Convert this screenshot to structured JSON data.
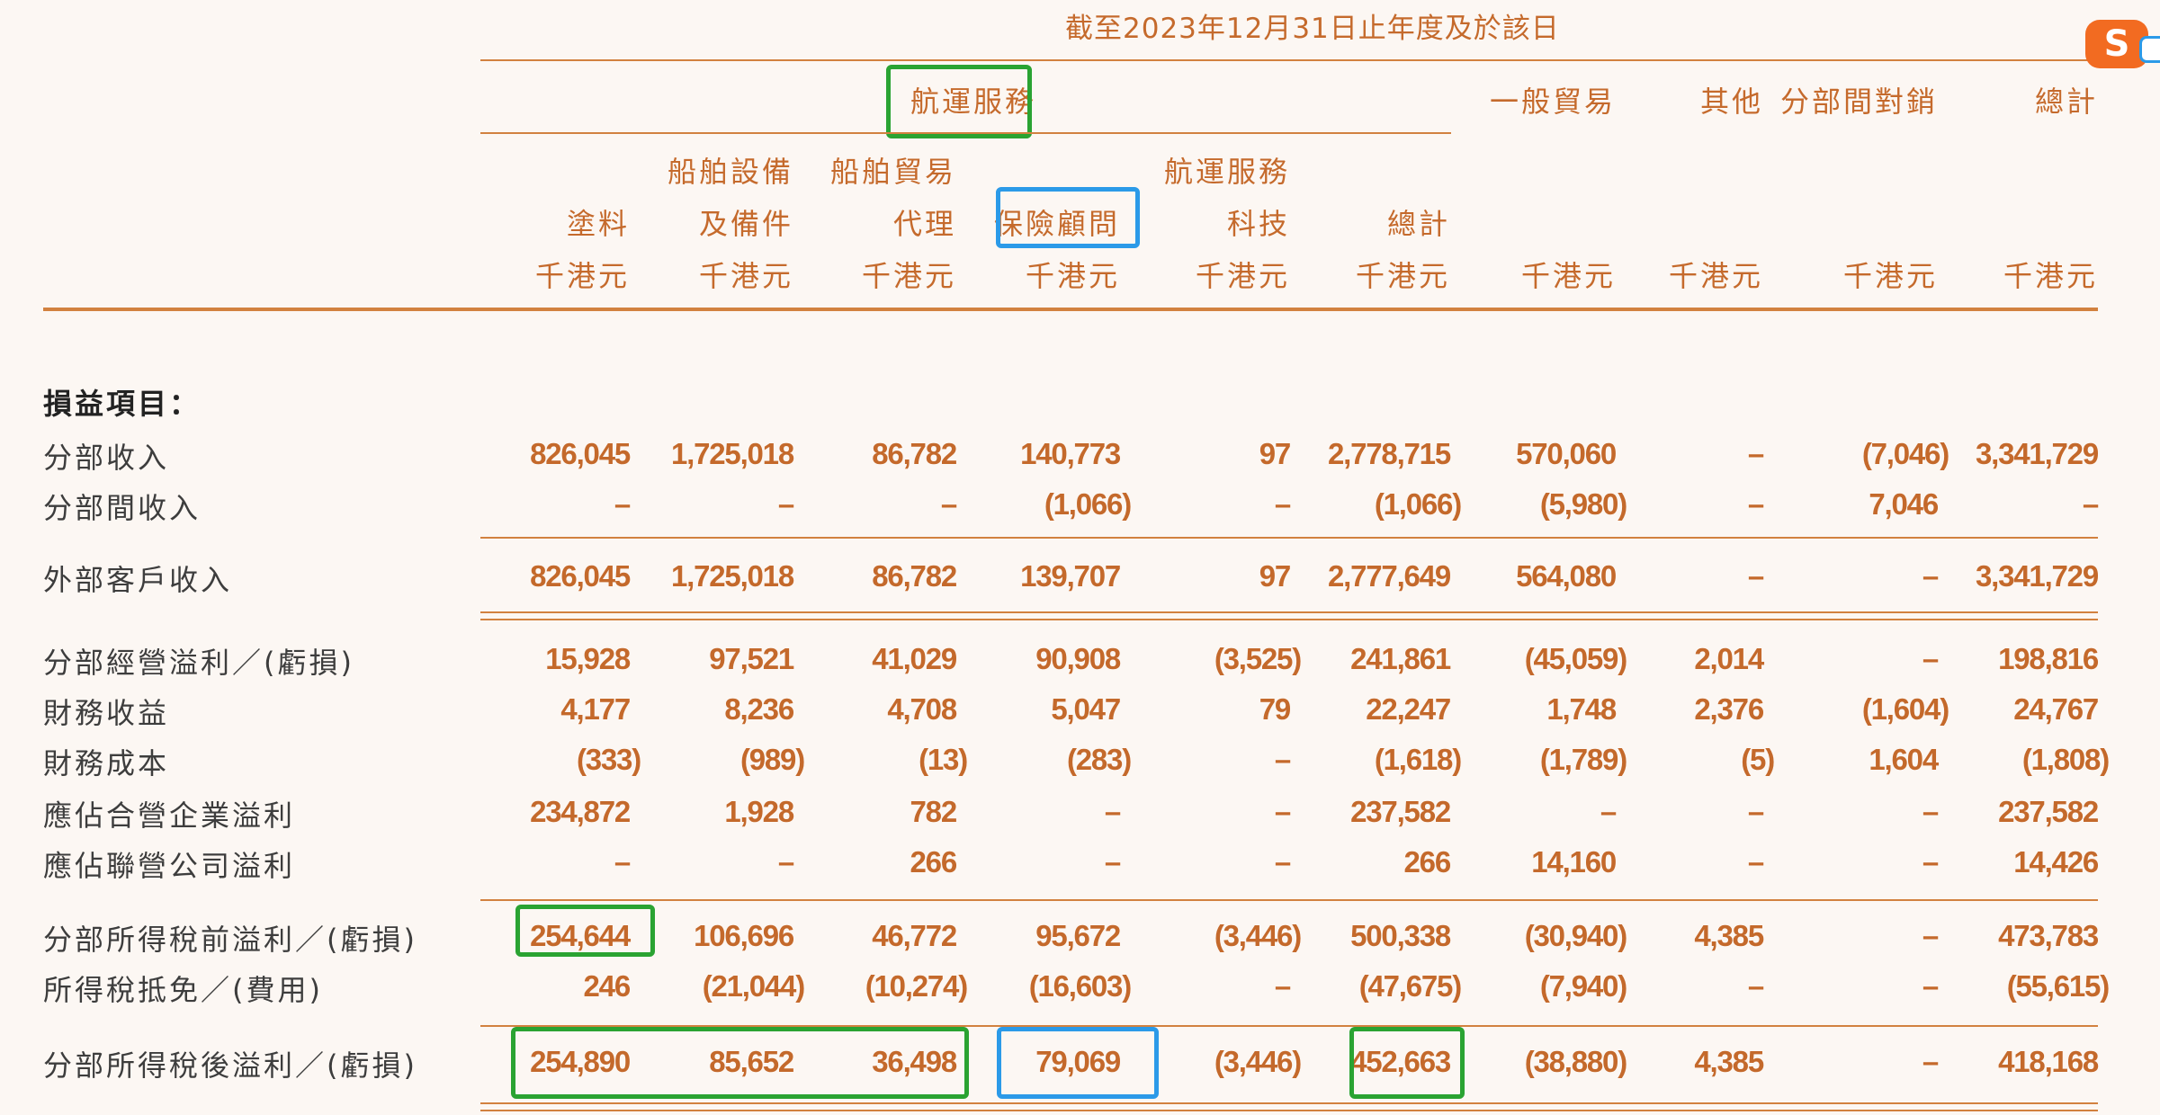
{
  "title": "截至2023年12月31日止年度及於該日",
  "group_header": "航運服務",
  "other_headers": [
    "一般貿易",
    "其他",
    "分部間對銷",
    "總計"
  ],
  "sub_headers": [
    {
      "line1": "",
      "line2": "塗料"
    },
    {
      "line1": "船舶設備",
      "line2": "及備件"
    },
    {
      "line1": "船舶貿易",
      "line2": "代理"
    },
    {
      "line1": "",
      "line2": "保險顧問"
    },
    {
      "line1": "航運服務",
      "line2": "科技"
    },
    {
      "line1": "",
      "line2": "總計"
    }
  ],
  "unit": "千港元",
  "section_title": "損益項目：",
  "rows": [
    {
      "label": "分部收入",
      "values": [
        "826,045",
        "1,725,018",
        "86,782",
        "140,773",
        "97",
        "2,778,715",
        "570,060",
        "–",
        "(7,046)",
        "3,341,729"
      ]
    },
    {
      "label": "分部間收入",
      "values": [
        "–",
        "–",
        "–",
        "(1,066)",
        "–",
        "(1,066)",
        "(5,980)",
        "–",
        "7,046",
        "–"
      ]
    },
    {
      "label": "外部客戶收入",
      "values": [
        "826,045",
        "1,725,018",
        "86,782",
        "139,707",
        "97",
        "2,777,649",
        "564,080",
        "–",
        "–",
        "3,341,729"
      ]
    },
    {
      "label": "分部經營溢利／(虧損)",
      "values": [
        "15,928",
        "97,521",
        "41,029",
        "90,908",
        "(3,525)",
        "241,861",
        "(45,059)",
        "2,014",
        "–",
        "198,816"
      ]
    },
    {
      "label": "財務收益",
      "values": [
        "4,177",
        "8,236",
        "4,708",
        "5,047",
        "79",
        "22,247",
        "1,748",
        "2,376",
        "(1,604)",
        "24,767"
      ]
    },
    {
      "label": "財務成本",
      "values": [
        "(333)",
        "(989)",
        "(13)",
        "(283)",
        "–",
        "(1,618)",
        "(1,789)",
        "(5)",
        "1,604",
        "(1,808)"
      ]
    },
    {
      "label": "應佔合營企業溢利",
      "values": [
        "234,872",
        "1,928",
        "782",
        "–",
        "–",
        "237,582",
        "–",
        "–",
        "–",
        "237,582"
      ]
    },
    {
      "label": "應佔聯營公司溢利",
      "values": [
        "–",
        "–",
        "266",
        "–",
        "–",
        "266",
        "14,160",
        "–",
        "–",
        "14,426"
      ]
    },
    {
      "label": "分部所得稅前溢利／(虧損)",
      "values": [
        "254,644",
        "106,696",
        "46,772",
        "95,672",
        "(3,446)",
        "500,338",
        "(30,940)",
        "4,385",
        "–",
        "473,783"
      ]
    },
    {
      "label": "所得稅抵免／(費用)",
      "values": [
        "246",
        "(21,044)",
        "(10,274)",
        "(16,603)",
        "–",
        "(47,675)",
        "(7,940)",
        "–",
        "–",
        "(55,615)"
      ]
    },
    {
      "label": "分部所得稅後溢利／(虧損)",
      "values": [
        "254,890",
        "85,652",
        "36,498",
        "79,069",
        "(3,446)",
        "452,663",
        "(38,880)",
        "4,385",
        "–",
        "418,168"
      ]
    }
  ],
  "logo_letter": "S",
  "colors": {
    "accent": "#c4692b",
    "green_box": "#2aa332",
    "blue_box": "#2b9ae8"
  }
}
